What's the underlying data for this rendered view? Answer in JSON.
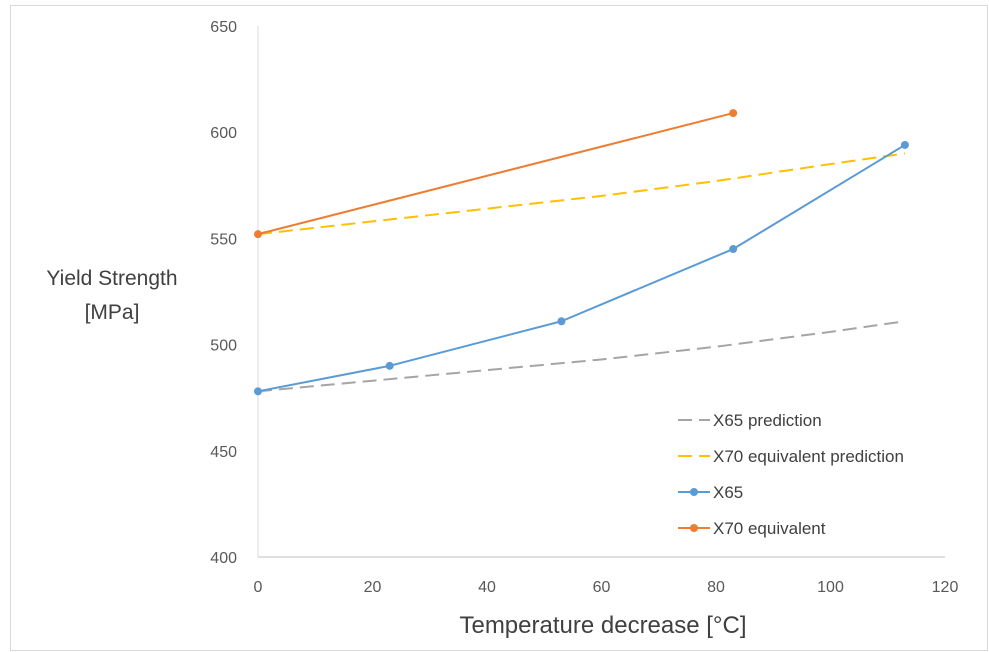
{
  "chart_data": {
    "type": "line",
    "xlabel": "Temperature decrease [°C]",
    "ylabel_lines": [
      "Yield Strength",
      "[MPa]"
    ],
    "xlim": [
      0,
      120
    ],
    "ylim": [
      400,
      650
    ],
    "xticks": [
      0,
      20,
      40,
      60,
      80,
      100,
      120
    ],
    "yticks": [
      400,
      450,
      500,
      550,
      600,
      650
    ],
    "grid": false,
    "legend_position": "bottom-right",
    "series": [
      {
        "name": "X65 prediction",
        "color": "#a5a5a5",
        "style": "dashed",
        "markers": false,
        "x": [
          0,
          20,
          40,
          60,
          80,
          100,
          113
        ],
        "y": [
          478,
          483,
          488,
          493,
          499,
          506,
          511
        ]
      },
      {
        "name": "X70 equivalent prediction",
        "color": "#ffc000",
        "style": "dashed",
        "markers": false,
        "x": [
          0,
          20,
          40,
          60,
          80,
          100,
          113
        ],
        "y": [
          552,
          558,
          564,
          570,
          577,
          585,
          590
        ]
      },
      {
        "name": "X65",
        "color": "#5b9bd5",
        "style": "solid",
        "markers": true,
        "x": [
          0,
          23,
          53,
          83,
          113
        ],
        "y": [
          478,
          490,
          511,
          545,
          594
        ]
      },
      {
        "name": "X70 equivalent",
        "color": "#ed7d31",
        "style": "solid",
        "markers": true,
        "x": [
          0,
          83
        ],
        "y": [
          552,
          609
        ]
      }
    ]
  }
}
